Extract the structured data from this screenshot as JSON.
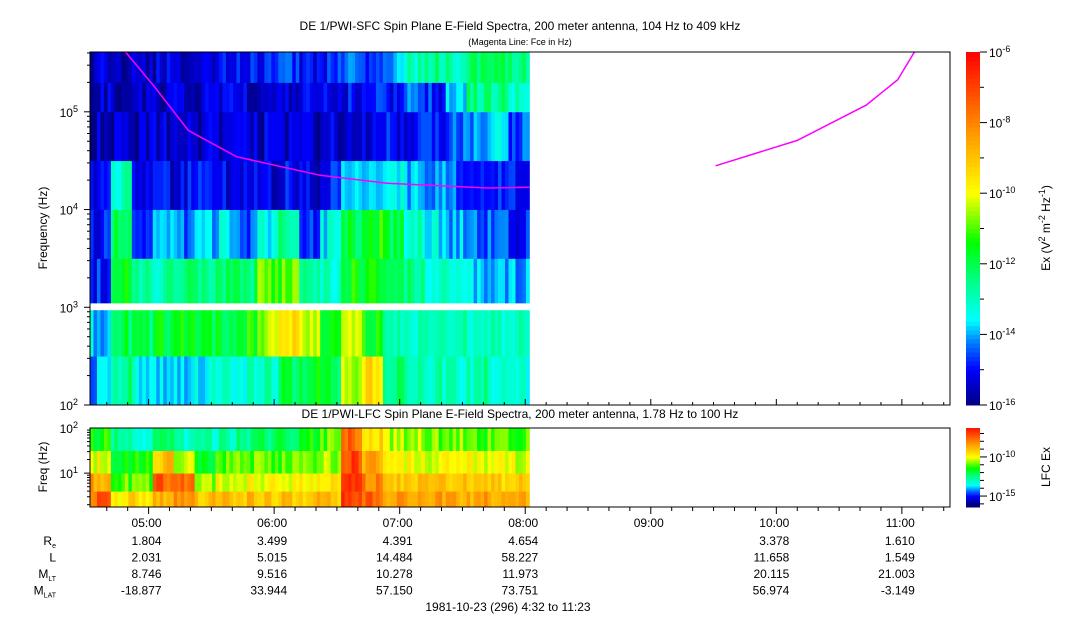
{
  "chart_data": [
    {
      "type": "heatmap",
      "title": "DE 1/PWI-SFC  Spin Plane E-Field Spectra, 200 meter antenna, 104 Hz to 409 kHz",
      "subtitle": "(Magenta Line: Fce in Hz)",
      "ylabel": "Frequency (Hz)",
      "yscale": "log",
      "ylim_log10": [
        2.0,
        5.612
      ],
      "y_ticks": [
        {
          "base": "10",
          "exp": "2",
          "v": 2
        },
        {
          "base": "10",
          "exp": "3",
          "v": 3
        },
        {
          "base": "10",
          "exp": "4",
          "v": 4
        },
        {
          "base": "10",
          "exp": "5",
          "v": 5
        }
      ],
      "time_start_min": 272,
      "time_bin_minutes": 10,
      "freq_bins_log10": [
        [
          2.0,
          2.5
        ],
        [
          2.5,
          3.0
        ],
        [
          3.0,
          3.5
        ],
        [
          3.5,
          4.0
        ],
        [
          4.0,
          4.5
        ],
        [
          4.5,
          5.0
        ],
        [
          5.0,
          5.3
        ],
        [
          5.3,
          5.612
        ]
      ],
      "gap_log10": [
        2.97,
        3.04
      ],
      "values_log10": [
        [
          -14.0,
          -13.8,
          -14.8,
          -15.0,
          -15.3,
          -15.5,
          -15.5,
          -15.5
        ],
        [
          -12.5,
          -12.0,
          -11.5,
          -12.0,
          -13.0,
          -15.5,
          -15.5,
          -15.5
        ],
        [
          -13.5,
          -12.2,
          -12.8,
          -14.5,
          -15.2,
          -15.5,
          -15.5,
          -15.5
        ],
        [
          -13.5,
          -11.8,
          -12.8,
          -14.2,
          -15.2,
          -15.4,
          -15.4,
          -15.4
        ],
        [
          -13.6,
          -11.7,
          -12.5,
          -14.3,
          -15.0,
          -15.4,
          -15.4,
          -15.3
        ],
        [
          -13.5,
          -11.8,
          -12.3,
          -14.0,
          -15.1,
          -15.4,
          -15.4,
          -15.3
        ],
        [
          -13.3,
          -11.8,
          -12.2,
          -13.6,
          -15.2,
          -15.4,
          -15.3,
          -15.2
        ],
        [
          -13.2,
          -11.5,
          -12.4,
          -14.5,
          -15.2,
          -15.4,
          -15.3,
          -15.0
        ],
        [
          -12.8,
          -10.5,
          -11.0,
          -13.5,
          -15.2,
          -15.4,
          -15.2,
          -14.8
        ],
        [
          -12.0,
          -9.5,
          -11.0,
          -12.5,
          -15.0,
          -15.4,
          -15.2,
          -14.8
        ],
        [
          -11.8,
          -10.5,
          -12.8,
          -14.8,
          -15.2,
          -15.4,
          -15.3,
          -15.0
        ],
        [
          -12.0,
          -11.5,
          -13.0,
          -13.5,
          -15.0,
          -15.3,
          -15.2,
          -14.8
        ],
        [
          -10.5,
          -10.5,
          -11.5,
          -11.8,
          -13.5,
          -15.2,
          -15.0,
          -14.6
        ],
        [
          -9.5,
          -11.5,
          -11.5,
          -11.5,
          -13.5,
          -15.2,
          -15.0,
          -14.5
        ],
        [
          -12.5,
          -12.8,
          -12.3,
          -12.0,
          -13.5,
          -15.0,
          -14.8,
          -14.0
        ],
        [
          -12.8,
          -13.0,
          -12.5,
          -13.0,
          -13.8,
          -15.0,
          -14.5,
          -13.0
        ],
        [
          -13.0,
          -13.0,
          -13.0,
          -13.5,
          -14.3,
          -15.0,
          -14.8,
          -12.5
        ],
        [
          -13.0,
          -12.8,
          -13.4,
          -14.0,
          -14.5,
          -14.5,
          -13.5,
          -12.8
        ],
        [
          -12.8,
          -13.0,
          -13.8,
          -14.3,
          -14.5,
          -14.0,
          -12.5,
          -12.3
        ],
        [
          -13.0,
          -13.0,
          -14.0,
          -14.5,
          -14.8,
          -13.5,
          -12.5,
          -12.0
        ],
        [
          -13.2,
          -13.0,
          -14.0,
          -14.8,
          -14.8,
          -14.5,
          -13.0,
          -12.5
        ]
      ],
      "fce_line": {
        "label": "Fce",
        "color": "#ff00ff",
        "segments": [
          [
            [
              289,
              409000
            ],
            [
              303,
              178000
            ],
            [
              319,
              64600
            ],
            [
              342,
              34700
            ],
            [
              382,
              22400
            ],
            [
              414,
              18600
            ],
            [
              462,
              16600
            ],
            [
              482,
              16900
            ]
          ],
          [
            [
              571,
              28000
            ],
            [
              610,
              51000
            ],
            [
              643,
              117000
            ],
            [
              658,
              213000
            ],
            [
              666,
              409000
            ]
          ]
        ]
      },
      "colorbar": {
        "label_main": "Ex (V",
        "label_sup1": "2",
        "label_mid": " m",
        "label_sup2": "-2",
        "label_hz": " Hz",
        "label_sup3": "-1",
        "label_end": ")",
        "range_log10": [
          -16,
          -6
        ],
        "ticks": [
          {
            "base": "10",
            "exp": "-6",
            "v": -6
          },
          {
            "base": "10",
            "exp": "-8",
            "v": -8
          },
          {
            "base": "10",
            "exp": "-10",
            "v": -10
          },
          {
            "base": "10",
            "exp": "-12",
            "v": -12
          },
          {
            "base": "10",
            "exp": "-14",
            "v": -14
          },
          {
            "base": "10",
            "exp": "-16",
            "v": -16
          }
        ]
      }
    },
    {
      "type": "heatmap",
      "title": "DE 1/PWI-LFC  Spin Plane E-Field Spectra, 200 meter antenna, 1.78 Hz to 100 Hz",
      "ylabel": "Freq (Hz)",
      "yscale": "log",
      "ylim_log10": [
        0.25,
        2.0
      ],
      "y_ticks": [
        {
          "base": "10",
          "exp": "1",
          "v": 1
        },
        {
          "base": "10",
          "exp": "2",
          "v": 2
        }
      ],
      "time_start_min": 272,
      "time_bin_minutes": 10,
      "freq_bins_log10": [
        [
          0.25,
          0.6
        ],
        [
          0.6,
          1.0
        ],
        [
          1.0,
          1.5
        ],
        [
          1.5,
          2.0
        ]
      ],
      "values_log10": [
        [
          -7.5,
          -8.5,
          -10.0,
          -11.5
        ],
        [
          -9.5,
          -11.0,
          -11.5,
          -12.5
        ],
        [
          -9.5,
          -11.0,
          -11.5,
          -13.0
        ],
        [
          -8.5,
          -7.5,
          -9.0,
          -12.5
        ],
        [
          -8.0,
          -7.8,
          -10.5,
          -13.0
        ],
        [
          -9.0,
          -10.5,
          -11.5,
          -13.0
        ],
        [
          -9.0,
          -10.0,
          -11.0,
          -12.8
        ],
        [
          -9.0,
          -10.0,
          -11.0,
          -12.5
        ],
        [
          -9.0,
          -10.0,
          -11.0,
          -12.3
        ],
        [
          -9.0,
          -10.0,
          -11.0,
          -12.0
        ],
        [
          -9.0,
          -10.0,
          -11.0,
          -11.5
        ],
        [
          -9.0,
          -9.5,
          -10.5,
          -11.0
        ],
        [
          -7.0,
          -7.0,
          -7.0,
          -7.5
        ],
        [
          -7.5,
          -8.0,
          -8.5,
          -9.5
        ],
        [
          -8.5,
          -9.0,
          -10.0,
          -10.5
        ],
        [
          -8.5,
          -9.0,
          -10.0,
          -10.5
        ],
        [
          -8.5,
          -9.0,
          -10.0,
          -10.8
        ],
        [
          -8.5,
          -9.0,
          -10.0,
          -10.8
        ],
        [
          -8.5,
          -9.0,
          -10.0,
          -11.0
        ],
        [
          -8.5,
          -9.2,
          -10.0,
          -11.0
        ],
        [
          -8.5,
          -9.2,
          -10.2,
          -11.0
        ]
      ],
      "colorbar": {
        "label": "LFC Ex",
        "range_log10": [
          -16.4,
          -6.3
        ],
        "ticks": [
          {
            "base": "10",
            "exp": "-10",
            "v": -10
          },
          {
            "base": "10",
            "exp": "-15",
            "v": -15
          }
        ]
      }
    }
  ],
  "time_axis": {
    "range_min": [
      272,
      683
    ],
    "ticks": [
      {
        "label": "05:00",
        "min": 300
      },
      {
        "label": "06:00",
        "min": 360
      },
      {
        "label": "07:00",
        "min": 420
      },
      {
        "label": "08:00",
        "min": 480
      },
      {
        "label": "09:00",
        "min": 540
      },
      {
        "label": "10:00",
        "min": 600
      },
      {
        "label": "11:00",
        "min": 660
      }
    ]
  },
  "ephemeris": {
    "rows": [
      {
        "label": "R",
        "sub": "e",
        "values": [
          "1.804",
          "3.499",
          "4.391",
          "4.654",
          "",
          "3.378",
          "1.610"
        ]
      },
      {
        "label": "L",
        "sub": "",
        "values": [
          "2.031",
          "5.015",
          "14.484",
          "58.227",
          "",
          "11.658",
          "1.549"
        ]
      },
      {
        "label": "M",
        "sub": "LT",
        "values": [
          "8.746",
          "9.516",
          "10.278",
          "11.973",
          "",
          "20.115",
          "21.003"
        ]
      },
      {
        "label": "M",
        "sub": "LAT",
        "values": [
          "-18.877",
          "33.944",
          "57.150",
          "73.751",
          "",
          "56.974",
          "-3.149"
        ]
      }
    ],
    "footer": "1981-10-23 (296) 4:32 to 11:23"
  }
}
